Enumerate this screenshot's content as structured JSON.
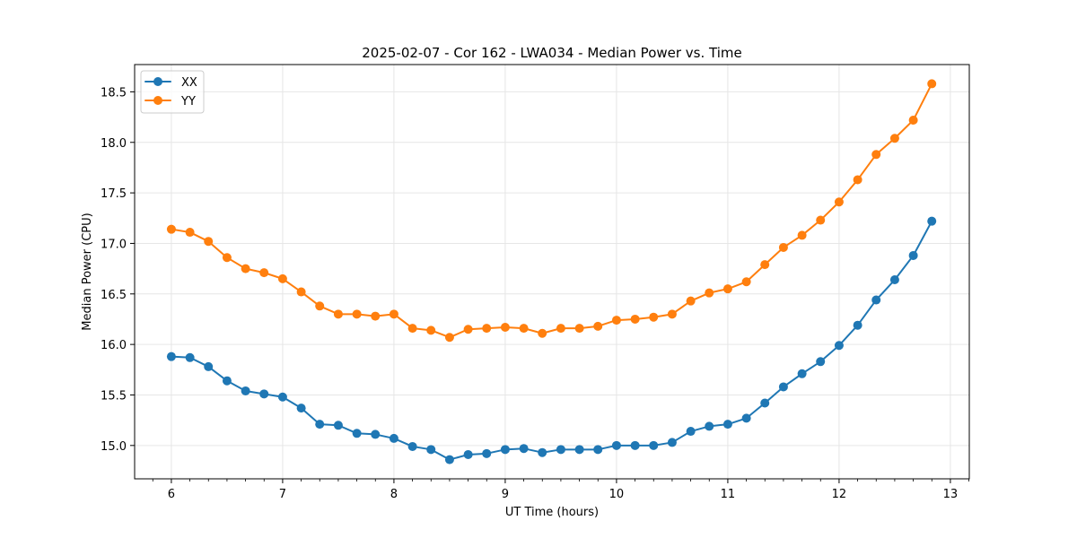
{
  "chart_data": {
    "type": "line",
    "title": "2025-02-07 - Cor 162 - LWA034 - Median Power vs. Time",
    "xlabel": "UT Time (hours)",
    "ylabel": "Median Power (CPU)",
    "xlim": [
      5.67,
      13.17
    ],
    "ylim": [
      14.67,
      18.77
    ],
    "xticks": [
      6,
      7,
      8,
      9,
      10,
      11,
      12,
      13
    ],
    "yticks": [
      15.0,
      15.5,
      16.0,
      16.5,
      17.0,
      17.5,
      18.0,
      18.5
    ],
    "grid": true,
    "legend_position": "top-left",
    "x": [
      6.0,
      6.167,
      6.333,
      6.5,
      6.667,
      6.833,
      7.0,
      7.167,
      7.333,
      7.5,
      7.667,
      7.833,
      8.0,
      8.167,
      8.333,
      8.5,
      8.667,
      8.833,
      9.0,
      9.167,
      9.333,
      9.5,
      9.667,
      9.833,
      10.0,
      10.167,
      10.333,
      10.5,
      10.667,
      10.833,
      11.0,
      11.167,
      11.333,
      11.5,
      11.667,
      11.833,
      12.0,
      12.167,
      12.333,
      12.5,
      12.667,
      12.833
    ],
    "series": [
      {
        "name": "XX",
        "color": "#1f77b4",
        "values": [
          15.88,
          15.87,
          15.78,
          15.64,
          15.54,
          15.51,
          15.48,
          15.37,
          15.21,
          15.2,
          15.12,
          15.11,
          15.07,
          14.99,
          14.96,
          14.86,
          14.91,
          14.92,
          14.96,
          14.97,
          14.93,
          14.96,
          14.96,
          14.96,
          15.0,
          15.0,
          15.0,
          15.03,
          15.14,
          15.19,
          15.21,
          15.27,
          15.42,
          15.58,
          15.71,
          15.83,
          15.99,
          16.19,
          16.44,
          16.64,
          16.88,
          17.22
        ]
      },
      {
        "name": "YY",
        "color": "#ff7f0e",
        "values": [
          17.14,
          17.11,
          17.02,
          16.86,
          16.75,
          16.71,
          16.65,
          16.52,
          16.38,
          16.3,
          16.3,
          16.28,
          16.3,
          16.16,
          16.14,
          16.07,
          16.15,
          16.16,
          16.17,
          16.16,
          16.11,
          16.16,
          16.16,
          16.18,
          16.24,
          16.25,
          16.27,
          16.3,
          16.43,
          16.51,
          16.55,
          16.62,
          16.79,
          16.96,
          17.08,
          17.23,
          17.41,
          17.63,
          17.88,
          18.04,
          18.22,
          18.58
        ]
      }
    ]
  }
}
